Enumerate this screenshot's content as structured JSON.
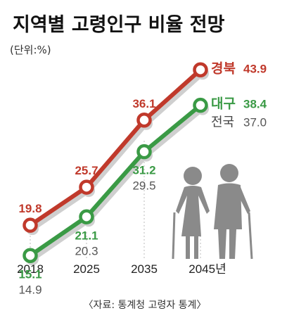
{
  "title": "지역별 고령인구 비율 전망",
  "unit": "(단위:%)",
  "source": "〈자료: 통계청 고령자 통계〉",
  "chart_data": {
    "type": "line",
    "categories": [
      "2018",
      "2025",
      "2035",
      "2045년"
    ],
    "ylim": [
      10,
      46
    ],
    "series": [
      {
        "name": "경북",
        "values": [
          19.8,
          25.7,
          36.1,
          43.9
        ],
        "labels": [
          "19.8",
          "25.7",
          "36.1",
          "43.9"
        ],
        "color": "#c0392b",
        "style": "bold"
      },
      {
        "name": "대구",
        "values": [
          15.1,
          21.1,
          31.2,
          38.4
        ],
        "labels": [
          "15.1",
          "21.1",
          "31.2",
          "38.4"
        ],
        "color": "#3a9a45",
        "style": "bold"
      },
      {
        "name": "전국",
        "values": [
          14.9,
          20.3,
          29.5,
          37.0
        ],
        "labels": [
          "14.9",
          "20.3",
          "29.5",
          "37.0"
        ],
        "color": "#555555",
        "style": "plain"
      }
    ]
  },
  "colors": {
    "shadow": "#cfcfcf",
    "gridline": "#bbbbbb",
    "figure": "#8a8a8a"
  },
  "icon": "elderly-couple-icon"
}
